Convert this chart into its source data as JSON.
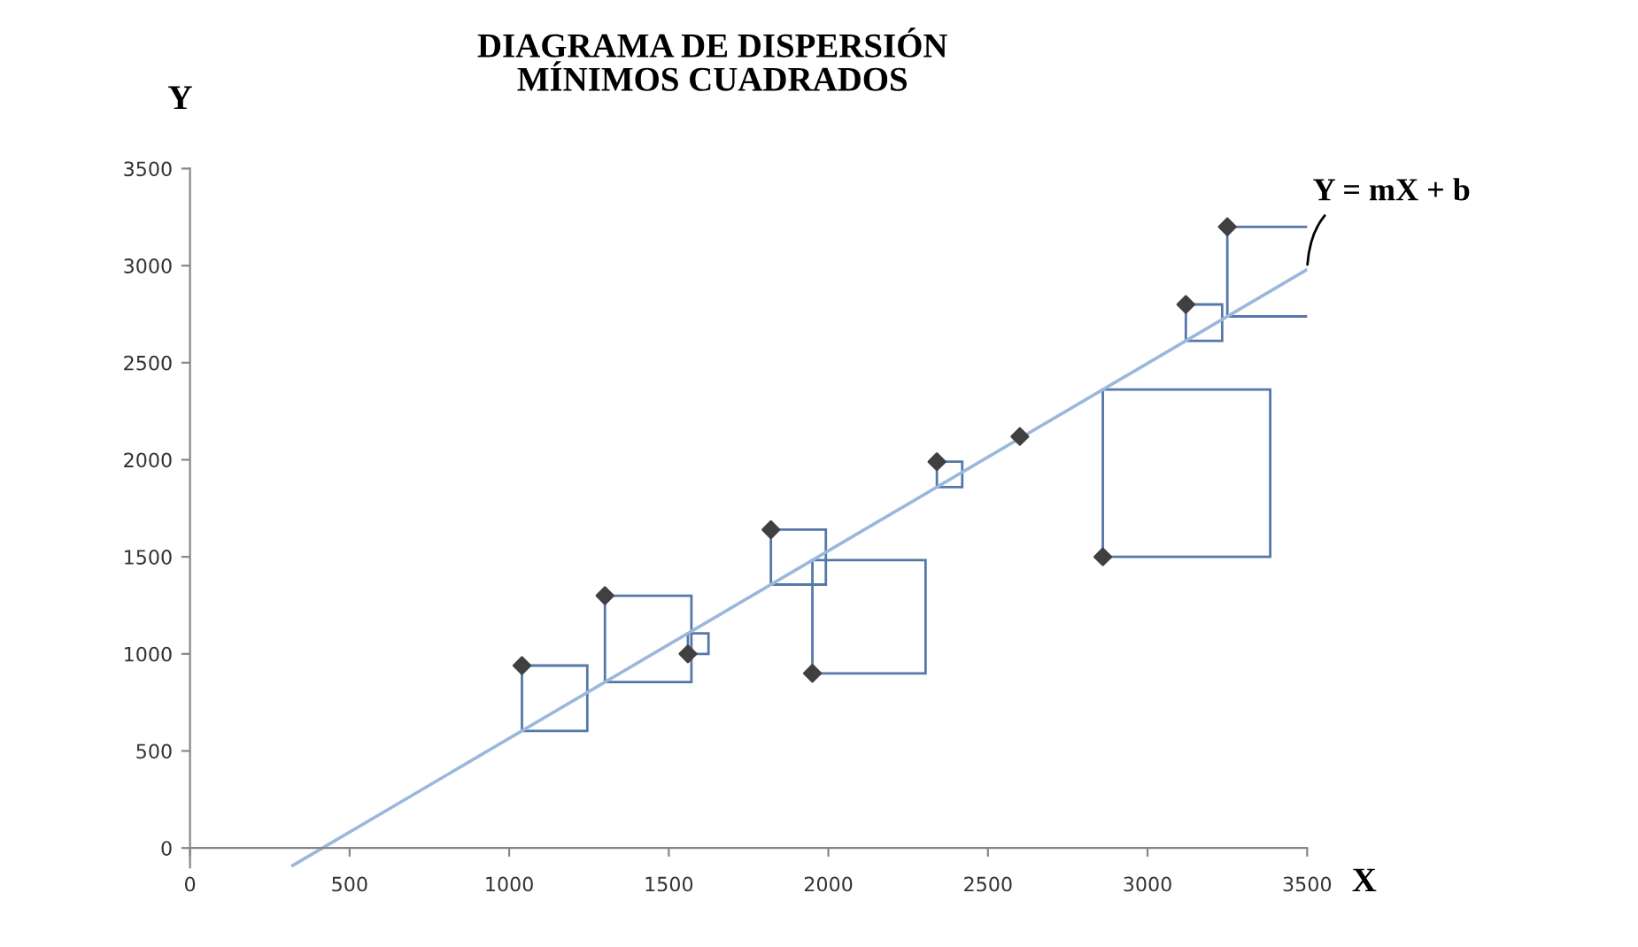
{
  "chart_data": {
    "type": "scatter",
    "title": "DIAGRAMA DE DISPERSIÓN\nMÍNIMOS CUADRADOS",
    "xlabel": "X",
    "ylabel": "Y",
    "xlim": [
      0,
      3500
    ],
    "ylim": [
      -100,
      3500
    ],
    "xticks": [
      0,
      500,
      1000,
      1500,
      2000,
      2500,
      3000,
      3500
    ],
    "yticks": [
      0,
      500,
      1000,
      1500,
      2000,
      2500,
      3000,
      3500
    ],
    "series": [
      {
        "marker": "diamond",
        "color": "#404040",
        "x": [
          1040,
          1300,
          1560,
          1820,
          1950,
          2340,
          2600,
          2860,
          3120,
          3250
        ],
        "values": [
          940,
          1300,
          1000,
          1640,
          900,
          1990,
          2120,
          1500,
          2800,
          3200
        ]
      },
      {
        "type": "line",
        "color": "#9ab8dc",
        "x": [
          322,
          3500
        ],
        "values": [
          -90,
          2980
        ]
      }
    ],
    "annotations": [
      {
        "text": "Y = mX + b",
        "x": 3500,
        "y": 2980
      }
    ]
  }
}
